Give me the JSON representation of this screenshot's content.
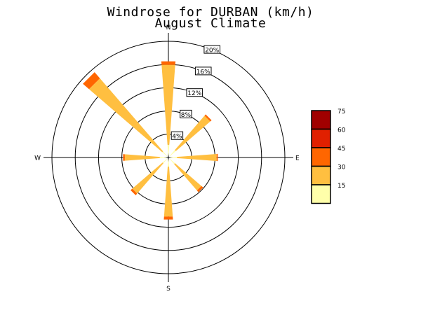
{
  "chart_data": {
    "type": "windrose",
    "title": "Windrose for DURBAN (km/h)",
    "subtitle": "August Climate",
    "compass_labels": [
      "N",
      "E",
      "S",
      "W"
    ],
    "ring_labels": [
      "4%",
      "8%",
      "12%",
      "16%",
      "20%"
    ],
    "ring_values": [
      4,
      8,
      12,
      16,
      20
    ],
    "legend": {
      "labels": [
        "15",
        "30",
        "45",
        "60",
        "75"
      ],
      "colors": [
        "#ffffaa",
        "#ffbf40",
        "#ff6600",
        "#e02000",
        "#a00000"
      ]
    },
    "directions": [
      "N",
      "NE",
      "E",
      "SE",
      "S",
      "SW",
      "W",
      "NW"
    ],
    "angles_deg": [
      0,
      45,
      90,
      135,
      180,
      225,
      270,
      315
    ],
    "cumulative_percent": [
      [
        2.2,
        16.0,
        16.6
      ],
      [
        1.7,
        9.5,
        9.8
      ],
      [
        1.5,
        8.3,
        8.5
      ],
      [
        1.5,
        7.5,
        7.9
      ],
      [
        1.6,
        10.2,
        10.7
      ],
      [
        1.3,
        8.2,
        8.6
      ],
      [
        1.5,
        7.5,
        7.8
      ],
      [
        1.4,
        18.0,
        19.4
      ]
    ],
    "grid": true
  }
}
